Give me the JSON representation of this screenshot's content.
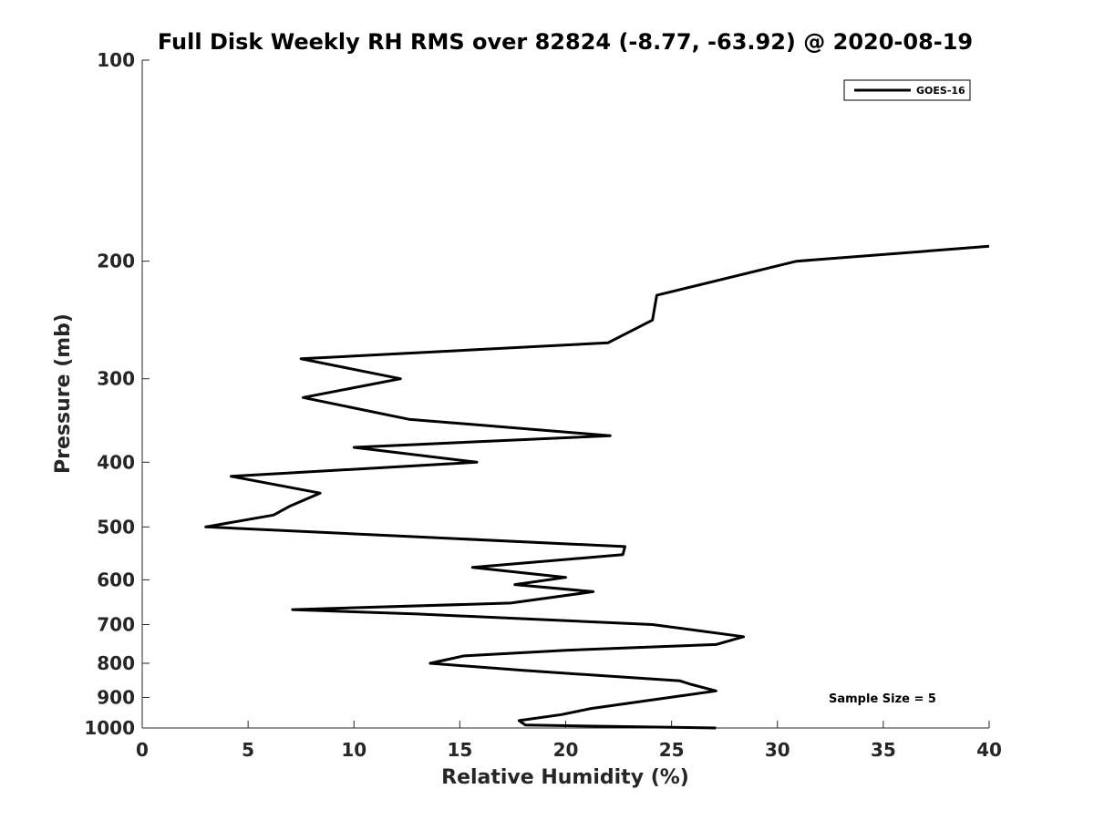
{
  "chart_data": {
    "type": "line",
    "title": "Full Disk Weekly RH RMS over 82824 (-8.77, -63.92) @ 2020-08-19",
    "xlabel": "Relative Humidity (%)",
    "ylabel": "Pressure (mb)",
    "xlim": [
      0,
      40
    ],
    "ylim": [
      100,
      1000
    ],
    "y_scale": "log",
    "y_reversed": true,
    "grid": false,
    "legend_position": "top-right",
    "x_ticks": [
      0,
      5,
      10,
      15,
      20,
      25,
      30,
      35,
      40
    ],
    "x_tick_labels": [
      "0",
      "5",
      "10",
      "15",
      "20",
      "25",
      "30",
      "35",
      "40"
    ],
    "y_ticks": [
      100,
      200,
      300,
      400,
      500,
      600,
      700,
      800,
      900,
      1000
    ],
    "y_tick_labels": [
      "100",
      "200",
      "300",
      "400",
      "500",
      "600",
      "700",
      "800",
      "900",
      "1000"
    ],
    "series": [
      {
        "name": "GOES-16",
        "color": "#000000",
        "points": [
          [
            27.1,
            1000
          ],
          [
            18.1,
            990
          ],
          [
            17.8,
            975
          ],
          [
            19.8,
            955
          ],
          [
            21.2,
            935
          ],
          [
            27.1,
            880
          ],
          [
            25.9,
            860
          ],
          [
            25.4,
            850
          ],
          [
            18.0,
            820
          ],
          [
            13.6,
            800
          ],
          [
            15.2,
            780
          ],
          [
            20.0,
            765
          ],
          [
            27.1,
            750
          ],
          [
            28.4,
            730
          ],
          [
            24.1,
            700
          ],
          [
            13.0,
            675
          ],
          [
            7.1,
            665
          ],
          [
            17.4,
            650
          ],
          [
            21.3,
            625
          ],
          [
            17.6,
            610
          ],
          [
            20.0,
            595
          ],
          [
            15.6,
            575
          ],
          [
            22.7,
            550
          ],
          [
            22.8,
            535
          ],
          [
            3.0,
            500
          ],
          [
            6.2,
            480
          ],
          [
            7.0,
            465
          ],
          [
            8.4,
            445
          ],
          [
            4.2,
            420
          ],
          [
            15.8,
            400
          ],
          [
            10.0,
            380
          ],
          [
            22.1,
            365
          ],
          [
            12.6,
            345
          ],
          [
            7.6,
            320
          ],
          [
            12.2,
            300
          ],
          [
            7.5,
            280
          ],
          [
            22.0,
            265
          ],
          [
            24.1,
            245
          ],
          [
            24.3,
            225
          ],
          [
            30.9,
            200
          ],
          [
            40.0,
            190
          ]
        ]
      }
    ],
    "annotation": "Sample Size = 5"
  }
}
